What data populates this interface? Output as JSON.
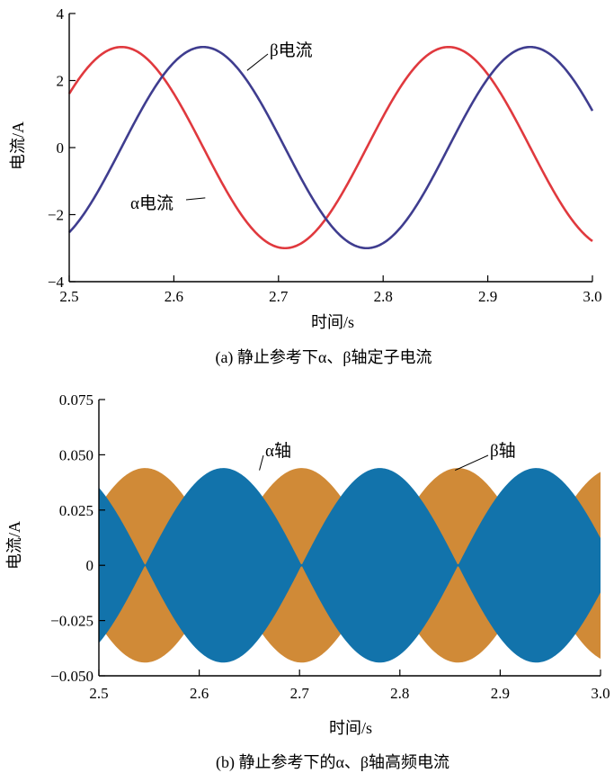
{
  "chart_data": [
    {
      "type": "line",
      "caption": "(a) 静止参考下α、β轴定子电流",
      "xlabel": "时间/s",
      "ylabel": "电流/A",
      "xlim": [
        2.5,
        3.0
      ],
      "ylim": [
        -4,
        4
      ],
      "xticks": [
        "2.5",
        "2.6",
        "2.7",
        "2.8",
        "2.9",
        "3.0"
      ],
      "yticks": [
        "−4",
        "−2",
        "0",
        "2",
        "4"
      ],
      "grid": false,
      "series": [
        {
          "name": "α电流",
          "color": "#e0393e",
          "amplitude": 3.0,
          "frequency_hz": 3.2,
          "peak_times": [
            2.55,
            2.863
          ],
          "trough_times": [
            2.707
          ],
          "x_start": 2.5,
          "y_start": 1.7,
          "x_end": 3.0,
          "y_end": -2.85
        },
        {
          "name": "β电流",
          "color": "#3f3d8f",
          "amplitude": 3.0,
          "frequency_hz": 3.2,
          "peak_times": [
            2.628,
            2.94
          ],
          "trough_times": [
            2.785
          ],
          "x_start": 2.5,
          "y_start": -2.55,
          "x_end": 3.0,
          "y_end": 1.1
        }
      ],
      "annotations": [
        {
          "text": "β电流",
          "series": "β电流",
          "point_x": 2.67,
          "point_y": 2.3
        },
        {
          "text": "α电流",
          "series": "α电流",
          "point_x": 2.63,
          "point_y": -1.5
        }
      ]
    },
    {
      "type": "area",
      "caption": "(b) 静止参考下的α、β轴高频电流",
      "xlabel": "时间/s",
      "ylabel": "电流/A",
      "xlim": [
        2.5,
        3.0
      ],
      "ylim": [
        -0.05,
        0.075
      ],
      "xticks": [
        "2.5",
        "2.6",
        "2.7",
        "2.8",
        "2.9",
        "3.0"
      ],
      "yticks": [
        "0.075",
        "0.050",
        "0.025",
        "0",
        "−0.025",
        "−0.050"
      ],
      "grid": false,
      "series": [
        {
          "name": "α轴",
          "color": "#d08a37",
          "envelope_amplitude": 0.044,
          "envelope": "abs_cos",
          "crossings": [
            2.624,
            2.78,
            2.936
          ]
        },
        {
          "name": "β轴",
          "color": "#1273ab",
          "envelope_amplitude": 0.044,
          "envelope": "abs_sin",
          "crossings": [
            2.624,
            2.78,
            2.936
          ]
        }
      ],
      "annotations": [
        {
          "text": "α轴",
          "series": "α轴",
          "point_x": 2.66,
          "point_y": 0.043
        },
        {
          "text": "β轴",
          "series": "β轴",
          "point_x": 2.855,
          "point_y": 0.043
        }
      ]
    }
  ]
}
